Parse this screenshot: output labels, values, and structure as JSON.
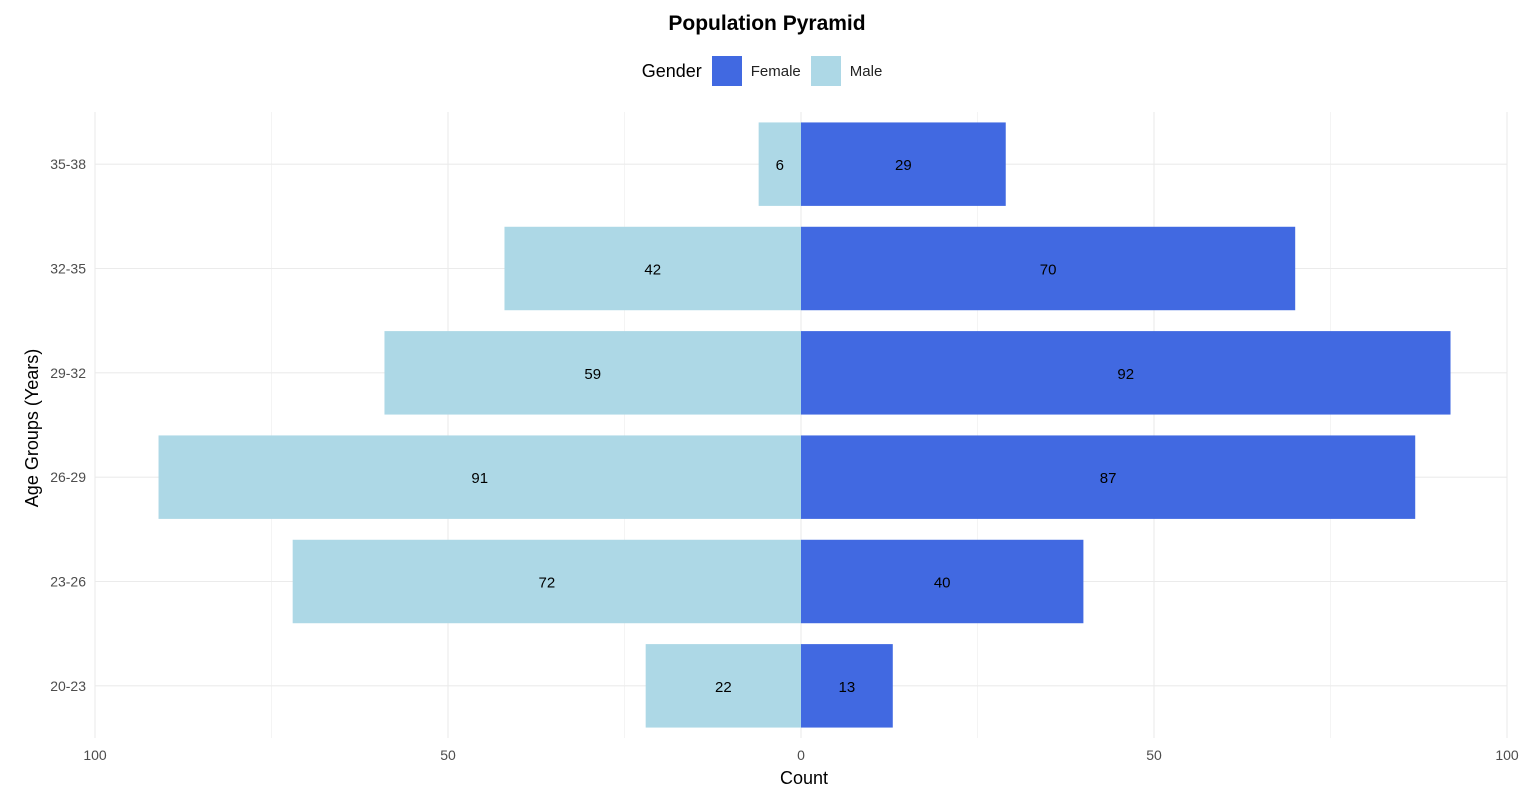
{
  "chart_data": {
    "type": "bar",
    "orientation": "horizontal",
    "title": "Population Pyramid",
    "xlabel": "Count",
    "ylabel": "Age Groups (Years)",
    "categories": [
      "20-23",
      "23-26",
      "26-29",
      "29-32",
      "32-35",
      "35-38"
    ],
    "series": [
      {
        "name": "Female",
        "side": "right",
        "color": "#4169E1",
        "values": [
          13,
          40,
          87,
          92,
          70,
          29
        ]
      },
      {
        "name": "Male",
        "side": "left",
        "color": "#ADD8E6",
        "values": [
          22,
          72,
          91,
          59,
          42,
          6
        ]
      }
    ],
    "xlim": [
      -100,
      100
    ],
    "x_ticks": [
      -100,
      -50,
      0,
      50,
      100
    ],
    "x_tick_labels": [
      "100",
      "50",
      "0",
      "50",
      "100"
    ],
    "legend_title": "Gender",
    "legend_position": "top",
    "grid": true
  }
}
